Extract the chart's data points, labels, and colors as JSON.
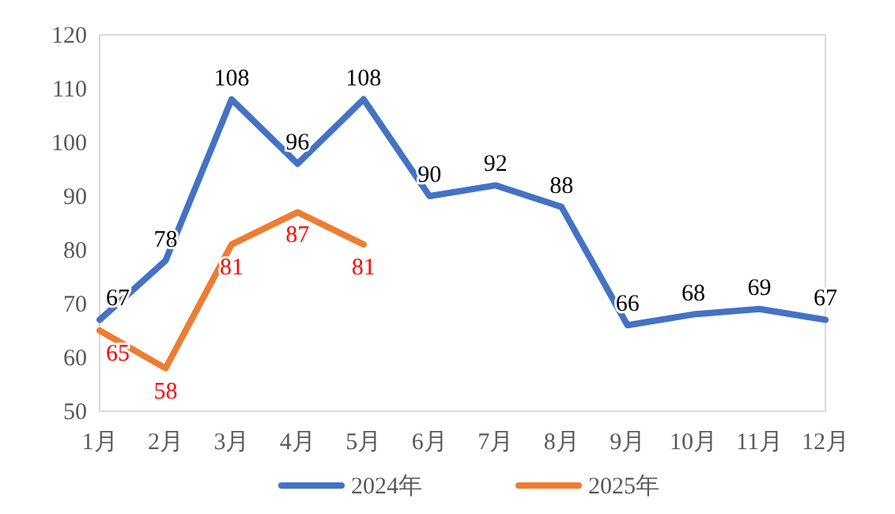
{
  "chart_data": {
    "type": "line",
    "categories": [
      "1月",
      "2月",
      "3月",
      "4月",
      "5月",
      "6月",
      "7月",
      "8月",
      "9月",
      "10月",
      "11月",
      "12月"
    ],
    "series": [
      {
        "name": "2024年",
        "color": "#4472c4",
        "values": [
          67,
          78,
          108,
          96,
          108,
          90,
          92,
          88,
          66,
          68,
          69,
          67
        ]
      },
      {
        "name": "2025年",
        "color": "#ed7d31",
        "values": [
          65,
          58,
          81,
          87,
          81,
          null,
          null,
          null,
          null,
          null,
          null,
          null
        ]
      }
    ],
    "ylim": [
      50,
      120
    ],
    "yticks": [
      50,
      60,
      70,
      80,
      90,
      100,
      110,
      120
    ],
    "data_labels": true,
    "legend": "bottom",
    "grid": false
  }
}
